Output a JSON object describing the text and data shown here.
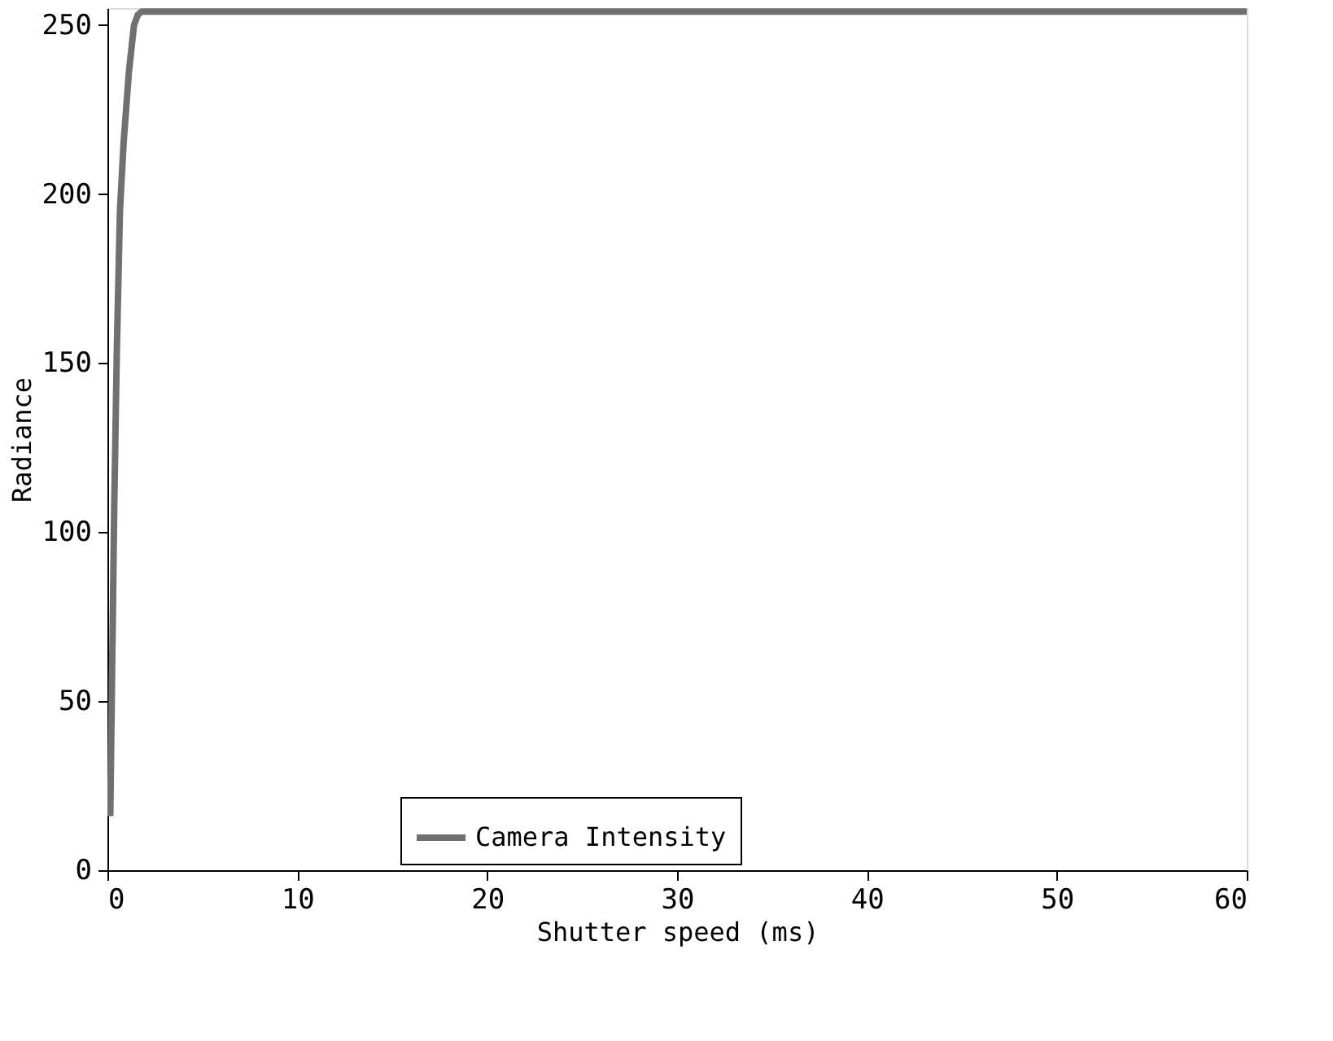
{
  "chart_data": {
    "type": "line",
    "xlabel": "Shutter speed (ms)",
    "ylabel": "Radiance",
    "series": [
      {
        "name": "Camera Intensity",
        "color": "#707070",
        "x": [
          0.15,
          0.25,
          0.36,
          0.5,
          0.66,
          0.85,
          1.13,
          1.4,
          1.6,
          1.8,
          5,
          10,
          20,
          30,
          40,
          50,
          60
        ],
        "values": [
          16,
          60,
          108,
          155,
          195,
          215,
          236,
          250,
          253,
          254,
          254,
          254,
          254,
          254,
          254,
          254,
          254
        ]
      }
    ],
    "xlim": [
      0,
      60
    ],
    "ylim": [
      0,
      255
    ],
    "xticks": [
      0,
      10,
      20,
      30,
      40,
      50,
      60
    ],
    "yticks": [
      0,
      50,
      100,
      150,
      200,
      250
    ],
    "grid": false,
    "legend": "bottom",
    "marker": "none",
    "line_style": "solid"
  }
}
